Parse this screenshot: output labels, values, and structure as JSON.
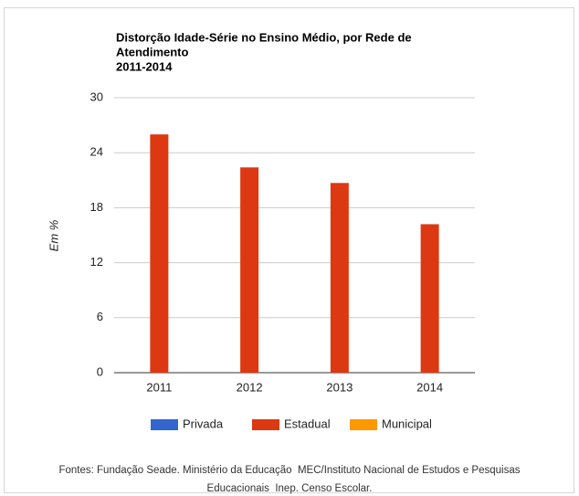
{
  "chart_data": {
    "type": "bar",
    "title": [
      "Distorção Idade-Série no Ensino Médio, por Rede de",
      "Atendimento"
    ],
    "subtitle": "2011-2014",
    "y_label": "Em %",
    "categories": [
      "2011",
      "2012",
      "2013",
      "2014"
    ],
    "series": [
      {
        "name": "Privada",
        "color": "#3366cc",
        "values": [
          null,
          null,
          null,
          null
        ]
      },
      {
        "name": "Estadual",
        "color": "#dc3912",
        "values": [
          26.0,
          22.4,
          20.7,
          16.2
        ]
      },
      {
        "name": "Municipal",
        "color": "#ff9900",
        "values": [
          null,
          null,
          null,
          null
        ]
      }
    ],
    "ylim": [
      0,
      30
    ],
    "yticks": [
      0,
      6,
      12,
      18,
      24,
      30
    ],
    "grid": true,
    "legend": "bottom",
    "source": [
      "Fontes: Fundação Seade. Ministério da Educação  MEC/Instituto Nacional de Estudos e Pesquisas",
      "Educacionais  Inep. Censo Escolar."
    ]
  }
}
